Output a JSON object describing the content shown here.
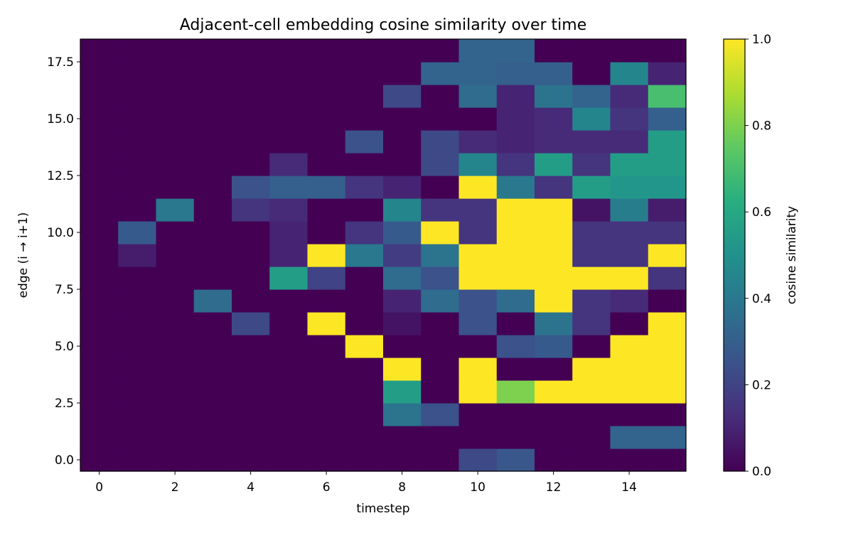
{
  "chart_data": {
    "type": "heatmap",
    "title": "Adjacent-cell embedding cosine similarity over time",
    "xlabel": "timestep",
    "ylabel": "edge (i → i+1)",
    "colorbar_label": "cosine similarity",
    "colormap": "viridis",
    "x": [
      0,
      1,
      2,
      3,
      4,
      5,
      6,
      7,
      8,
      9,
      10,
      11,
      12,
      13,
      14,
      15
    ],
    "y": [
      0,
      1,
      2,
      3,
      4,
      5,
      6,
      7,
      8,
      9,
      10,
      11,
      12,
      13,
      14,
      15,
      16,
      17,
      18
    ],
    "xlim": [
      -0.5,
      15.5
    ],
    "ylim": [
      -0.5,
      18.5
    ],
    "vlim": [
      0,
      1
    ],
    "x_ticks": [
      0,
      2,
      4,
      6,
      8,
      10,
      12,
      14
    ],
    "x_tick_labels": [
      "0",
      "2",
      "4",
      "6",
      "8",
      "10",
      "12",
      "14"
    ],
    "y_ticks": [
      0,
      2.5,
      5,
      7.5,
      10,
      12.5,
      15,
      17.5
    ],
    "y_tick_labels": [
      "0.0",
      "2.5",
      "5.0",
      "7.5",
      "10.0",
      "12.5",
      "15.0",
      "17.5"
    ],
    "colorbar_ticks": [
      0,
      0.2,
      0.4,
      0.6,
      0.8,
      1.0
    ],
    "colorbar_tick_labels": [
      "0.0",
      "0.2",
      "0.4",
      "0.6",
      "0.8",
      "1.0"
    ],
    "values": [
      [
        0,
        0,
        0,
        0,
        0,
        0,
        0,
        0,
        0,
        0,
        0.22,
        0.27,
        0,
        0,
        0,
        0
      ],
      [
        0,
        0,
        0,
        0,
        0,
        0,
        0,
        0,
        0,
        0,
        0,
        0,
        0,
        0,
        0.32,
        0.32
      ],
      [
        0,
        0,
        0,
        0,
        0,
        0,
        0,
        0,
        0.38,
        0.25,
        0,
        0,
        0,
        0,
        0,
        0
      ],
      [
        0,
        0,
        0,
        0,
        0,
        0,
        0,
        0,
        0.55,
        0,
        1,
        0.8,
        1,
        1,
        1,
        1
      ],
      [
        0,
        0,
        0,
        0,
        0,
        0,
        0,
        0,
        1,
        0,
        1,
        0,
        0,
        1,
        1,
        1
      ],
      [
        0,
        0,
        0,
        0,
        0,
        0,
        0,
        1,
        0,
        0,
        0,
        0.25,
        0.28,
        0,
        1,
        1
      ],
      [
        0,
        0,
        0,
        0,
        0.22,
        0,
        1,
        0,
        0.05,
        0,
        0.25,
        0,
        0.38,
        0.15,
        0,
        1
      ],
      [
        0,
        0,
        0,
        0.35,
        0,
        0,
        0,
        0,
        0.1,
        0.35,
        0.25,
        0.35,
        1,
        0.15,
        0.12,
        0
      ],
      [
        0,
        0,
        0,
        0,
        0,
        0.55,
        0.2,
        0,
        0.35,
        0.25,
        1,
        1,
        1,
        1,
        1,
        0.15
      ],
      [
        0,
        0.08,
        0,
        0,
        0,
        0.1,
        1,
        0.4,
        0.18,
        0.38,
        1,
        1,
        1,
        0.15,
        0.15,
        1
      ],
      [
        0,
        0.28,
        0,
        0,
        0,
        0.1,
        0,
        0.15,
        0.28,
        1,
        0.15,
        1,
        1,
        0.15,
        0.15,
        0.15
      ],
      [
        0,
        0,
        0.4,
        0,
        0.15,
        0.12,
        0,
        0,
        0.45,
        0.15,
        0.15,
        1,
        1,
        0.05,
        0.42,
        0.08
      ],
      [
        0,
        0,
        0,
        0,
        0.25,
        0.3,
        0.3,
        0.15,
        0.1,
        0,
        1,
        0.4,
        0.15,
        0.55,
        0.52,
        0.52
      ],
      [
        0,
        0,
        0,
        0,
        0,
        0.12,
        0,
        0,
        0,
        0.22,
        0.45,
        0.15,
        0.55,
        0.15,
        0.55,
        0.55
      ],
      [
        0,
        0,
        0,
        0,
        0,
        0,
        0,
        0.25,
        0,
        0.22,
        0.12,
        0.1,
        0.12,
        0.12,
        0.12,
        0.55
      ],
      [
        0,
        0,
        0,
        0,
        0,
        0,
        0,
        0,
        0,
        0,
        0,
        0.1,
        0.12,
        0.45,
        0.15,
        0.3
      ],
      [
        0,
        0,
        0,
        0,
        0,
        0,
        0,
        0,
        0.22,
        0,
        0.35,
        0.1,
        0.38,
        0.32,
        0.12,
        0.7
      ],
      [
        0,
        0,
        0,
        0,
        0,
        0,
        0,
        0,
        0,
        0.32,
        0.32,
        0.3,
        0.3,
        0,
        0.45,
        0.1
      ],
      [
        0,
        0,
        0,
        0,
        0,
        0,
        0,
        0,
        0,
        0,
        0.32,
        0.32,
        0,
        0,
        0,
        0
      ]
    ]
  }
}
